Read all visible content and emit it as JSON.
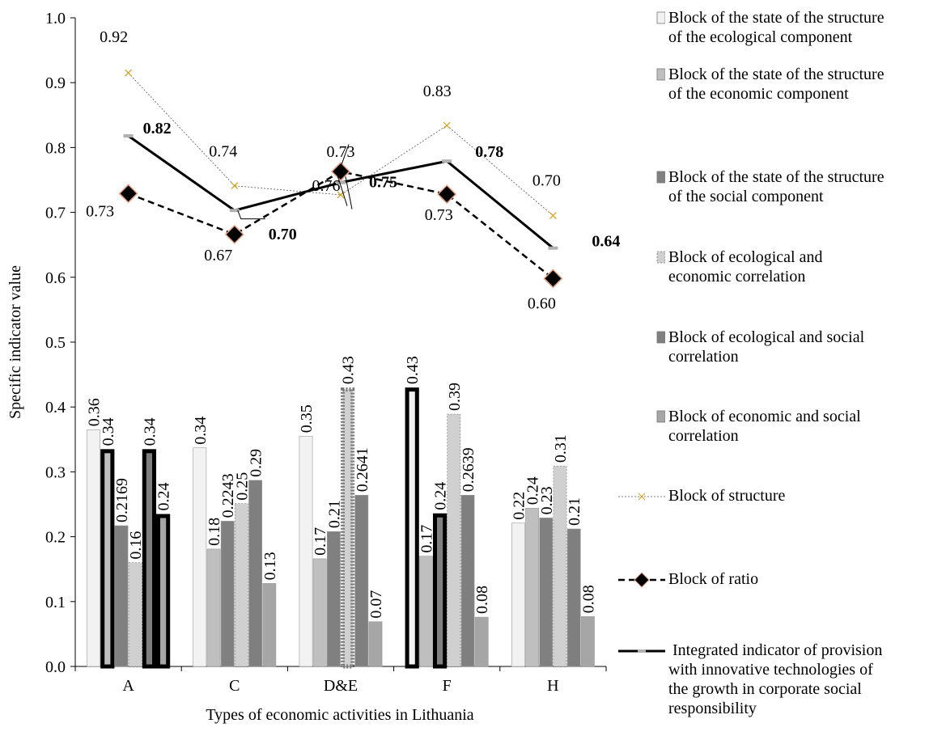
{
  "chart_data": {
    "type": "bar",
    "title": "",
    "xlabel": "Types of economic activities in Lithuania",
    "ylabel": "Specific  indicator value",
    "ylim": [
      0,
      1.0
    ],
    "yticks": [
      "0.0",
      "0.1",
      "0.2",
      "0.3",
      "0.4",
      "0.5",
      "0.6",
      "0.7",
      "0.8",
      "0.9",
      "1.0"
    ],
    "categories": [
      "A",
      "C",
      "D&E",
      "F",
      "H"
    ],
    "bar_series": [
      {
        "name": "Block of the state of the structure of the ecological component",
        "color": "#f2f2f2",
        "values": [
          0.365,
          0.337,
          0.355,
          0.43,
          0.221
        ],
        "labels": [
          "0.36",
          "0.34",
          "0.35",
          "0.43",
          "0.22"
        ],
        "thick": [
          false,
          false,
          false,
          true,
          false
        ]
      },
      {
        "name": "Block of the state of the structure of the economic component",
        "color": "#bfbfbf",
        "values": [
          0.335,
          0.181,
          0.166,
          0.17,
          0.244
        ],
        "labels": [
          "0.34",
          "0.18",
          "0.17",
          "0.17",
          "0.24"
        ],
        "thick": [
          true,
          false,
          false,
          false,
          false
        ]
      },
      {
        "name": "Block of the state of the structure of the social component",
        "color": "#808080",
        "values": [
          0.217,
          0.224,
          0.208,
          0.236,
          0.229
        ],
        "labels": [
          "0.2169",
          "0.2243",
          "0.21",
          "0.24",
          "0.23"
        ],
        "thick": [
          false,
          false,
          false,
          true,
          false
        ]
      },
      {
        "name": "Block of ecological and economic correlation",
        "color": "#d0d0d0",
        "values": [
          0.16,
          0.251,
          0.43,
          0.389,
          0.309
        ],
        "labels": [
          "0.16",
          "0.25",
          "0.43",
          "0.39",
          "0.31"
        ],
        "thick": [
          false,
          false,
          true,
          false,
          false
        ]
      },
      {
        "name": "Block of ecological and social correlation",
        "color": "#7f7f7f",
        "values": [
          0.335,
          0.287,
          0.264,
          0.264,
          0.212
        ],
        "labels": [
          "0.34",
          "0.29",
          "0.2641",
          "0.2639",
          "0.21"
        ],
        "thick": [
          true,
          false,
          false,
          false,
          false
        ]
      },
      {
        "name": "Block of economic and social correlation",
        "color": "#a6a6a6",
        "values": [
          0.235,
          0.128,
          0.069,
          0.076,
          0.077
        ],
        "labels": [
          "0.24",
          "0.13",
          "0.07",
          "0.08",
          "0.08"
        ],
        "thick": [
          true,
          false,
          false,
          false,
          false
        ]
      }
    ],
    "line_series": [
      {
        "name": "Block of structure",
        "color": "#d4a017",
        "values": [
          0.915,
          0.741,
          0.727,
          0.834,
          0.695
        ],
        "labels": [
          "0.92",
          "0.74",
          "0.73",
          "0.83",
          "0.70"
        ]
      },
      {
        "name": "Block of ratio",
        "color": "#000000",
        "values": [
          0.729,
          0.666,
          0.763,
          0.728,
          0.598
        ],
        "labels": [
          "0.73",
          "0.67",
          "0.76",
          "0.73",
          "0.60"
        ]
      },
      {
        "name": "Integrated indicator of provision with innovative technologies of the growth in corporate social responsibility",
        "color": "#000000",
        "values": [
          0.818,
          0.703,
          0.746,
          0.779,
          0.645
        ],
        "labels": [
          "0.82",
          "0.70",
          "0.75",
          "0.78",
          "0.64"
        ]
      }
    ],
    "legend": {
      "placement": "right",
      "items": [
        {
          "lines": [
            "Block of the state of the structure",
            "of the ecological component"
          ]
        },
        {
          "lines": [
            "Block of the state of the structure",
            "of the economic component"
          ]
        },
        {
          "lines": [
            "Block of the state of the structure",
            "of the social component"
          ]
        },
        {
          "lines": [
            "Block of ecological and",
            "economic correlation"
          ]
        },
        {
          "lines": [
            "Block of ecological and social",
            "correlation"
          ]
        },
        {
          "lines": [
            "Block of economic and social",
            "correlation"
          ]
        },
        {
          "lines": [
            "Block of structure"
          ]
        },
        {
          "lines": [
            "Block of ratio"
          ]
        },
        {
          "lines": [
            " Integrated indicator of provision",
            "with innovative technologies of",
            "the growth in corporate social",
            "responsibility"
          ]
        }
      ]
    }
  }
}
